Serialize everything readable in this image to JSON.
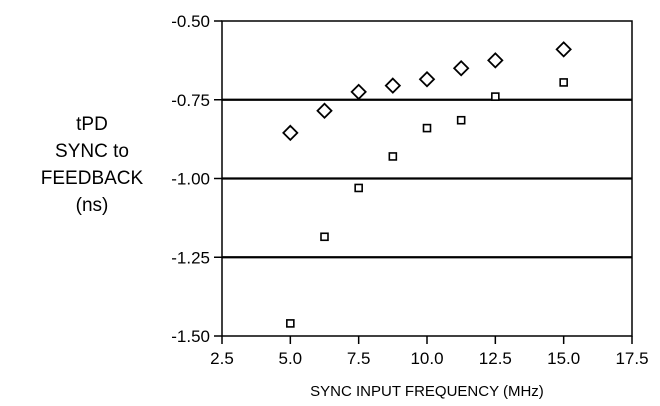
{
  "chart_data": {
    "type": "scatter",
    "title": "",
    "ylabel_lines": [
      "tPD",
      "SYNC to",
      "FEEDBACK",
      "(ns)"
    ],
    "xlabel": "SYNC INPUT FREQUENCY (MHz)",
    "xlim": [
      2.5,
      17.5
    ],
    "ylim": [
      -1.5,
      -0.5
    ],
    "x_ticks": [
      "2.5",
      "5.0",
      "7.5",
      "10.0",
      "12.5",
      "15.0",
      "17.5"
    ],
    "y_ticks": [
      "-0.50",
      "-0.75",
      "-1.00",
      "-1.25",
      "-1.50"
    ],
    "grid": "horizontal",
    "series": [
      {
        "marker": "diamond",
        "x": [
          5.0,
          6.25,
          7.5,
          8.75,
          10.0,
          11.25,
          12.5,
          15.0
        ],
        "y": [
          -0.855,
          -0.785,
          -0.725,
          -0.705,
          -0.685,
          -0.65,
          -0.625,
          -0.59
        ]
      },
      {
        "marker": "square",
        "x": [
          5.0,
          6.25,
          7.5,
          8.75,
          10.0,
          11.25,
          12.5,
          15.0
        ],
        "y": [
          -1.46,
          -1.185,
          -1.03,
          -0.93,
          -0.84,
          -0.815,
          -0.74,
          -0.695
        ]
      }
    ]
  }
}
